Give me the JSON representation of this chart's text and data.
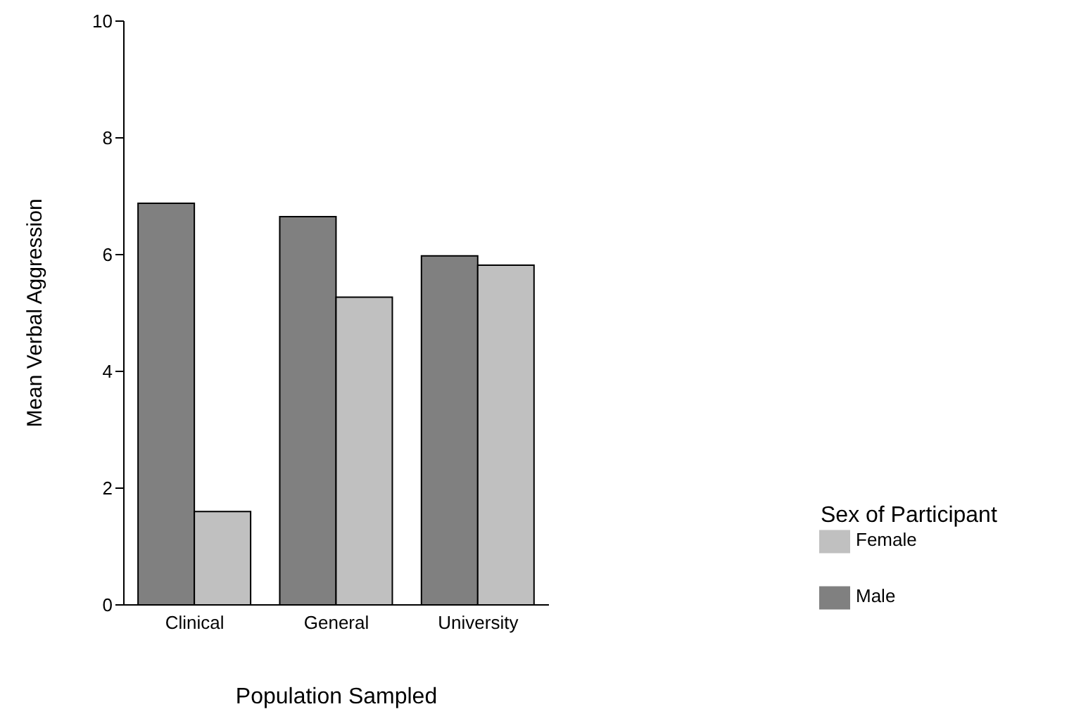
{
  "chart_data": {
    "type": "bar",
    "xlabel": "Population Sampled",
    "ylabel": "Mean Verbal Aggression",
    "legend_title": "Sex of Participant",
    "categories": [
      "Clinical",
      "General",
      "University"
    ],
    "series": [
      {
        "name": "Male",
        "color": "#808080",
        "values": [
          6.88,
          6.65,
          5.98
        ]
      },
      {
        "name": "Female",
        "color": "#c0c0c0",
        "values": [
          1.6,
          5.27,
          5.82
        ]
      }
    ],
    "ylim": [
      0,
      10
    ],
    "yticks": [
      0,
      2,
      4,
      6,
      8,
      10
    ],
    "grid": false,
    "legend": "right"
  }
}
